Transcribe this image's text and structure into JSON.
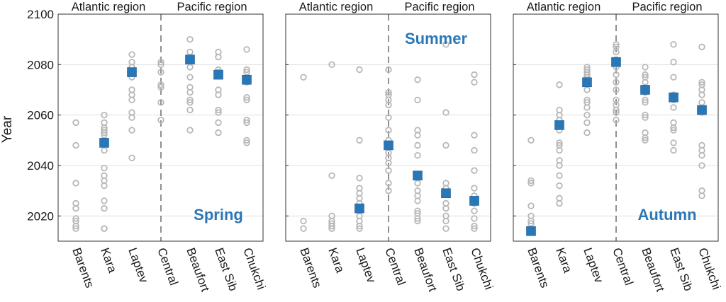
{
  "figure": {
    "ylabel": "Year",
    "region_labels": [
      "Atlantic region",
      "Pacific region"
    ],
    "categories": [
      "Barents",
      "Kara",
      "Laptev",
      "Central",
      "Beaufort",
      "East Sib",
      "Chukchi"
    ],
    "yticks": [
      2020,
      2040,
      2060,
      2080,
      2100
    ],
    "colors": {
      "members": "#b8b8b8",
      "mean": "#2a77b8",
      "season_label": "#2a77b8",
      "grid": "#e0e0e0",
      "axis": "#333333"
    }
  },
  "chart_data": [
    {
      "type": "scatter",
      "title": "Spring",
      "ylim": [
        2010,
        2100
      ],
      "categories": [
        "Barents",
        "Kara",
        "Laptev",
        "Central",
        "Beaufort",
        "East Sib",
        "Chukchi"
      ],
      "series": [
        {
          "values": [
            [
              2057,
              2048,
              2033,
              2025,
              2023,
              2019,
              2018,
              2016,
              2015
            ],
            [
              2060,
              2057,
              2055,
              2054,
              2053,
              2052,
              2050,
              2046,
              2039,
              2036,
              2034,
              2032,
              2026,
              2023,
              2015,
              2015
            ],
            [
              2084,
              2081,
              2079,
              2075,
              2070,
              2068,
              2066,
              2061,
              2059,
              2054,
              2043
            ],
            [
              2081,
              2080,
              2077,
              2072,
              2071,
              2065,
              2058
            ],
            [
              2090,
              2085,
              2081,
              2079,
              2075,
              2071,
              2069,
              2066,
              2065,
              2062,
              2054
            ],
            [
              2085,
              2083,
              2078,
              2077,
              2070,
              2068,
              2062,
              2061,
              2057,
              2053
            ],
            [
              2086,
              2078,
              2077,
              2073,
              2067,
              2066,
              2058,
              2057,
              2050,
              2049
            ]
          ]
        },
        {
          "values": [
            null,
            2049,
            2077,
            null,
            2082,
            2076,
            2074
          ]
        }
      ]
    },
    {
      "type": "scatter",
      "title": "Summer",
      "ylim": [
        2010,
        2100
      ],
      "categories": [
        "Barents",
        "Kara",
        "Laptev",
        "Central",
        "Beaufort",
        "East Sib",
        "Chukchi"
      ],
      "series": [
        {
          "values": [
            [
              2075,
              2018,
              2015
            ],
            [
              2080,
              2036,
              2020,
              2018,
              2017,
              2016,
              2016,
              2015,
              2015
            ],
            [
              2078,
              2050,
              2035,
              2031,
              2029,
              2027,
              2025,
              2022,
              2020,
              2018,
              2016,
              2015
            ],
            [
              2078,
              2069,
              2068,
              2066,
              2064,
              2059,
              2054,
              2050,
              2045,
              2043,
              2041,
              2038,
              2033,
              2030
            ],
            [
              2074,
              2066,
              2054,
              2052,
              2048,
              2044,
              2036,
              2033,
              2030,
              2028,
              2026,
              2022,
              2021,
              2019,
              2018
            ],
            [
              2088,
              2061,
              2048,
              2033,
              2031,
              2029,
              2025,
              2023,
              2020,
              2018,
              2015
            ],
            [
              2076,
              2073,
              2052,
              2046,
              2038,
              2031,
              2028,
              2025,
              2022,
              2019,
              2016,
              2015
            ]
          ]
        },
        {
          "values": [
            null,
            null,
            2023,
            2048,
            2036,
            2029,
            2026
          ]
        }
      ]
    },
    {
      "type": "scatter",
      "title": "Autumn",
      "ylim": [
        2010,
        2100
      ],
      "categories": [
        "Barents",
        "Kara",
        "Laptev",
        "Central",
        "Beaufort",
        "East Sib",
        "Chukchi"
      ],
      "series": [
        {
          "values": [
            [
              2050,
              2034,
              2033,
              2024,
              2020,
              2018,
              2017,
              2015
            ],
            [
              2072,
              2062,
              2060,
              2058,
              2054,
              2049,
              2048,
              2046,
              2042,
              2040,
              2036,
              2032,
              2027,
              2025
            ],
            [
              2079,
              2078,
              2077,
              2076,
              2075,
              2074,
              2070,
              2066,
              2065,
              2063,
              2060,
              2057,
              2053
            ],
            [
              2088,
              2087,
              2085,
              2082,
              2079,
              2076,
              2073,
              2070,
              2066,
              2064,
              2062,
              2061,
              2058
            ],
            [
              2079,
              2076,
              2075,
              2073,
              2071,
              2069,
              2066,
              2065,
              2060,
              2059,
              2053,
              2051,
              2050
            ],
            [
              2088,
              2081,
              2075,
              2068,
              2066,
              2063,
              2057,
              2055,
              2054,
              2049,
              2046
            ],
            [
              2087,
              2073,
              2072,
              2070,
              2068,
              2065,
              2061,
              2048,
              2046,
              2044,
              2040,
              2030,
              2028
            ]
          ]
        },
        {
          "values": [
            2014,
            2056,
            2073,
            2081,
            2070,
            2067,
            2062
          ]
        }
      ]
    }
  ]
}
